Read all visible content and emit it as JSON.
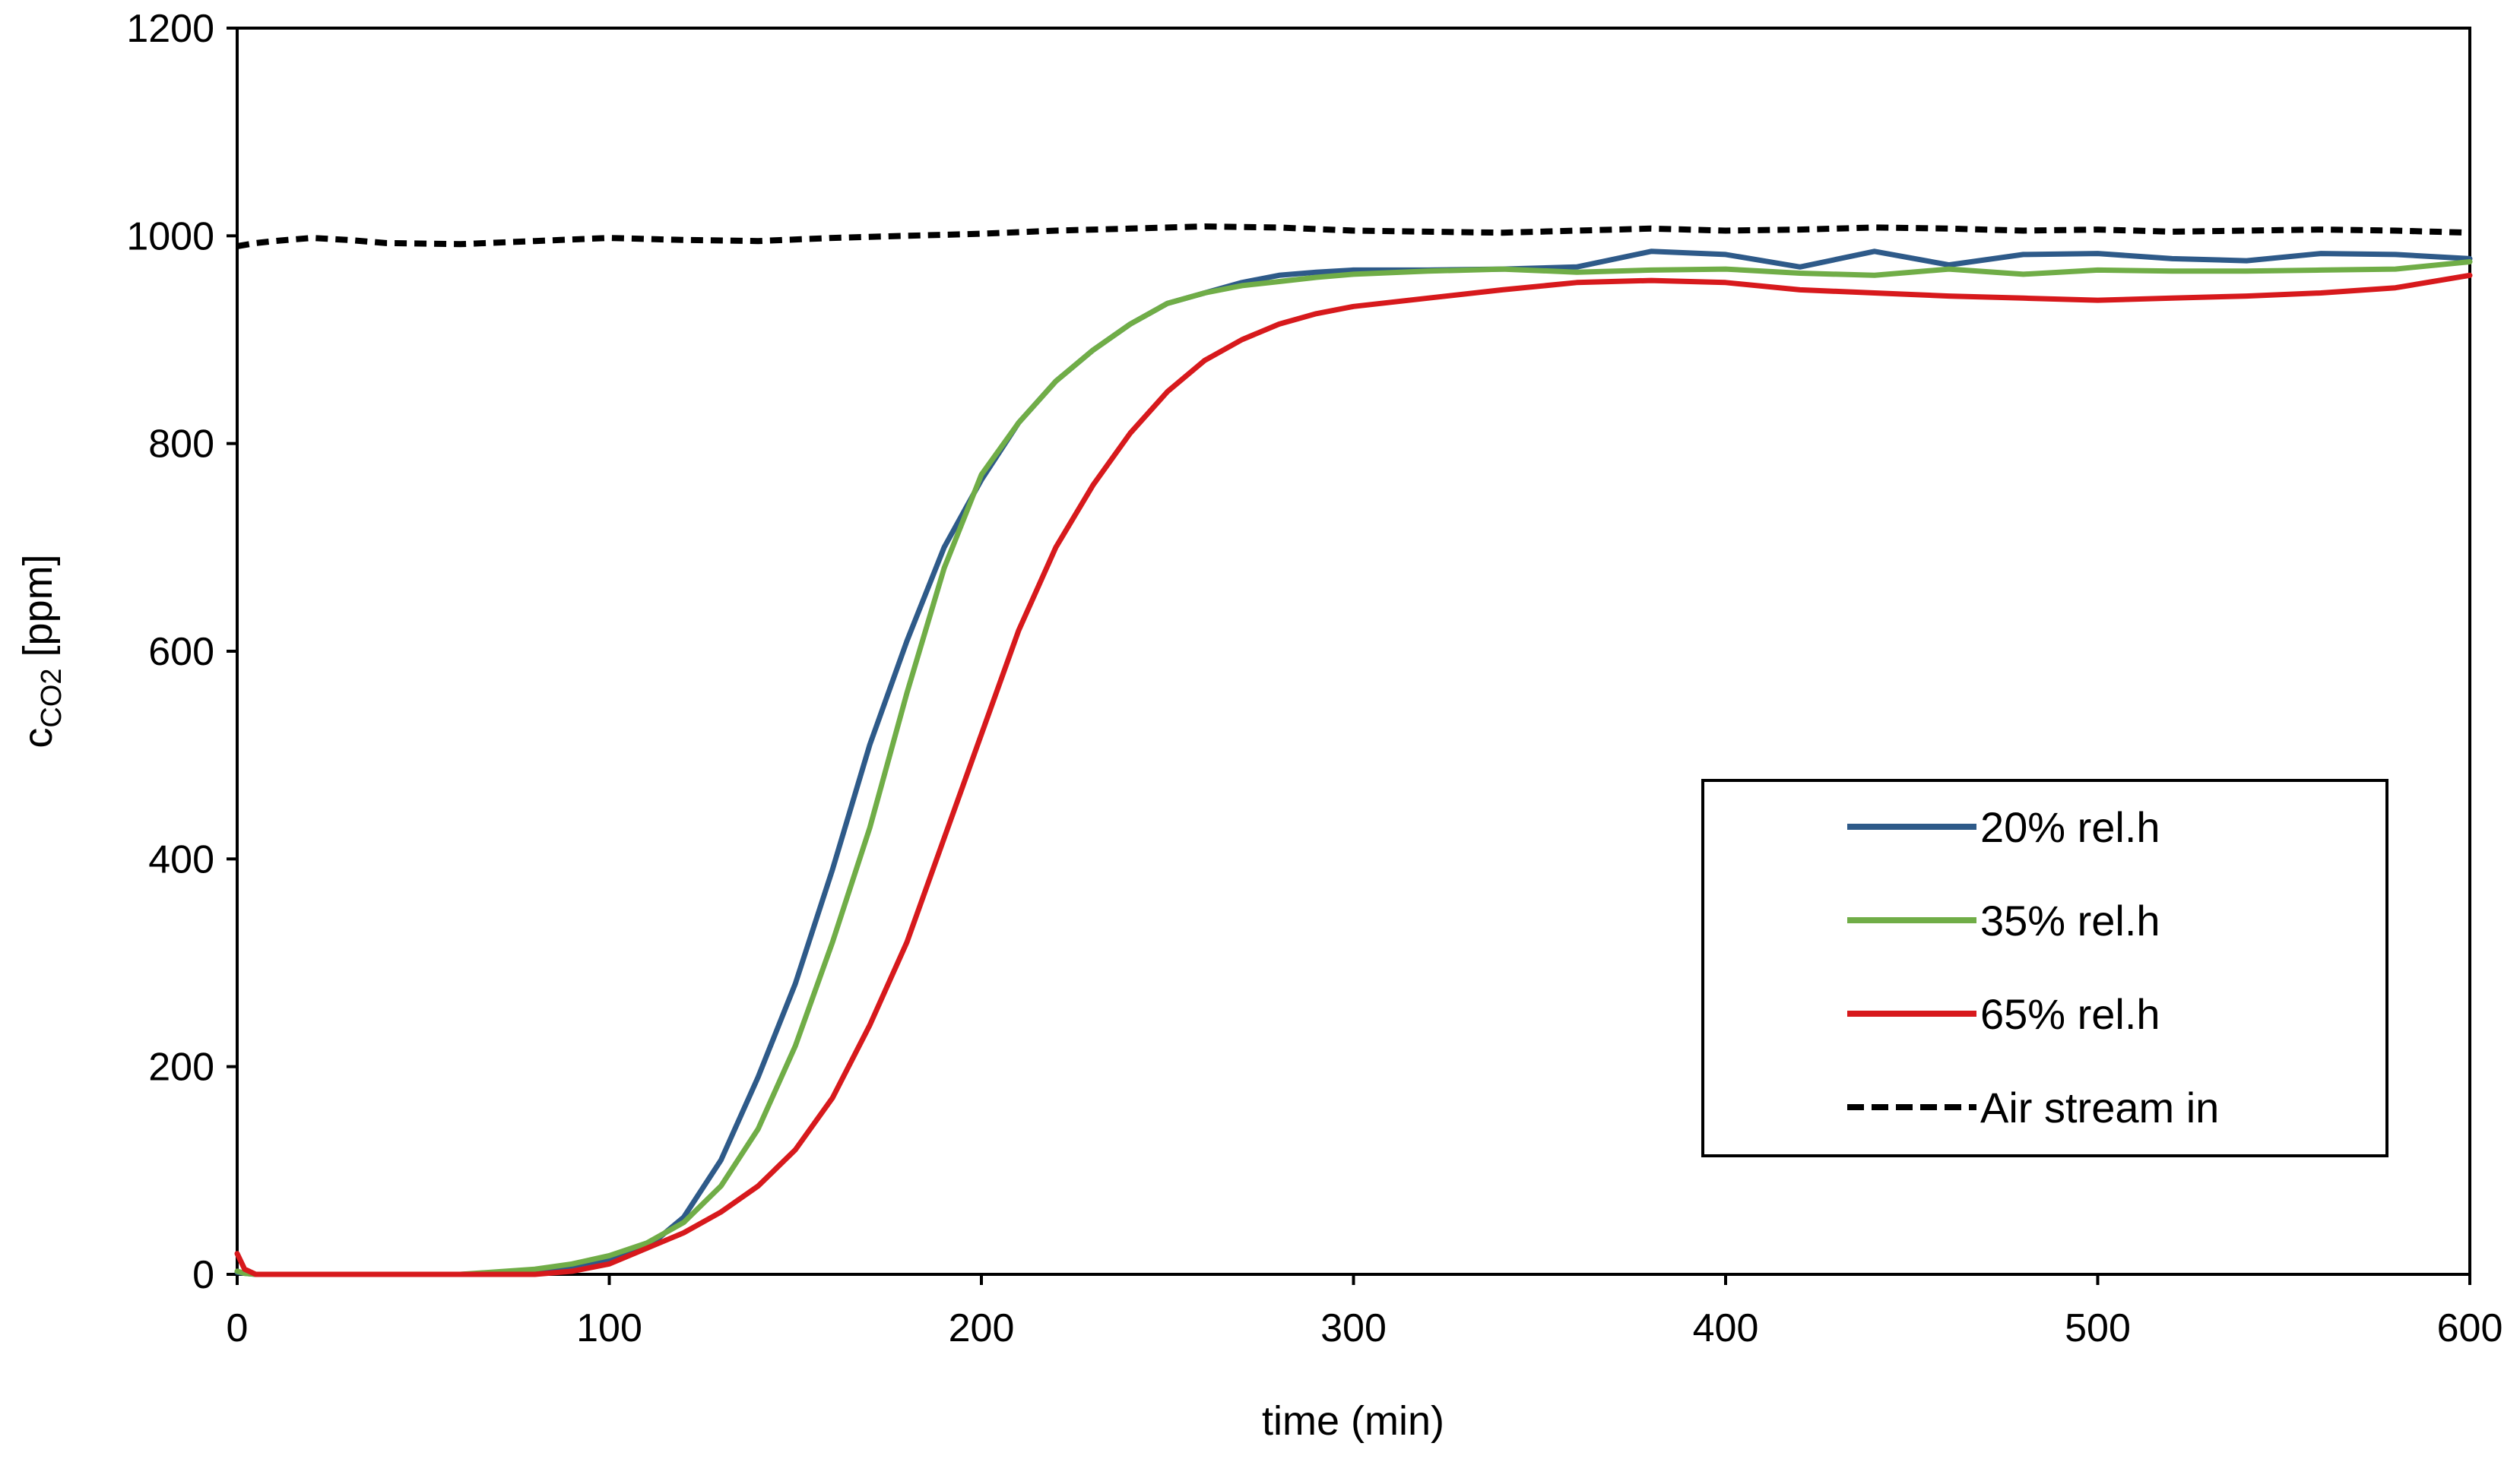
{
  "chart_data": {
    "type": "line",
    "title": "",
    "xlabel": "time (min)",
    "ylabel": {
      "base": "c",
      "subscript": "CO2",
      "unit": " [ppm]"
    },
    "xlim": [
      0,
      600
    ],
    "ylim": [
      0,
      1200
    ],
    "xticks": [
      0,
      100,
      200,
      300,
      400,
      500,
      600
    ],
    "yticks": [
      0,
      200,
      400,
      600,
      800,
      1000,
      1200
    ],
    "grid": false,
    "legend_position": "right-center",
    "series": [
      {
        "name": "20% rel.h",
        "color": "#2e5a89",
        "dash": "solid",
        "x": [
          0,
          2,
          5,
          10,
          20,
          40,
          60,
          80,
          90,
          100,
          110,
          120,
          130,
          140,
          150,
          160,
          165,
          170,
          180,
          190,
          200,
          210,
          220,
          230,
          240,
          250,
          260,
          270,
          280,
          290,
          300,
          320,
          340,
          360,
          380,
          400,
          420,
          440,
          460,
          480,
          500,
          520,
          540,
          560,
          580,
          600
        ],
        "y": [
          2,
          1,
          0,
          0,
          0,
          0,
          0,
          2,
          8,
          15,
          25,
          55,
          110,
          190,
          280,
          390,
          450,
          510,
          610,
          700,
          765,
          820,
          860,
          890,
          915,
          935,
          945,
          955,
          962,
          965,
          967,
          967,
          968,
          970,
          985,
          982,
          970,
          985,
          972,
          982,
          983,
          978,
          976,
          983,
          982,
          978
        ]
      },
      {
        "name": "35% rel.h",
        "color": "#70ad47",
        "dash": "solid",
        "x": [
          0,
          2,
          5,
          10,
          20,
          40,
          60,
          80,
          90,
          100,
          110,
          120,
          130,
          140,
          150,
          160,
          170,
          180,
          190,
          200,
          210,
          220,
          230,
          240,
          250,
          260,
          270,
          280,
          290,
          300,
          320,
          340,
          360,
          380,
          400,
          420,
          440,
          460,
          480,
          500,
          520,
          540,
          560,
          580,
          600
        ],
        "y": [
          3,
          1,
          0,
          0,
          0,
          0,
          0,
          5,
          10,
          18,
          30,
          50,
          85,
          140,
          220,
          320,
          430,
          560,
          680,
          770,
          820,
          860,
          890,
          915,
          935,
          945,
          952,
          956,
          960,
          963,
          966,
          968,
          965,
          967,
          968,
          964,
          962,
          968,
          963,
          967,
          966,
          966,
          967,
          968,
          975
        ]
      },
      {
        "name": "65% rel.h",
        "color": "#d7191c",
        "dash": "solid",
        "x": [
          0,
          2,
          5,
          10,
          20,
          40,
          60,
          80,
          90,
          100,
          110,
          120,
          130,
          140,
          150,
          160,
          170,
          180,
          190,
          200,
          210,
          220,
          230,
          240,
          250,
          260,
          270,
          280,
          290,
          300,
          320,
          340,
          360,
          380,
          400,
          420,
          440,
          460,
          480,
          500,
          520,
          540,
          560,
          580,
          600
        ],
        "y": [
          20,
          5,
          0,
          0,
          0,
          0,
          0,
          0,
          3,
          10,
          25,
          40,
          60,
          85,
          120,
          170,
          240,
          320,
          420,
          520,
          620,
          700,
          760,
          810,
          850,
          880,
          900,
          915,
          925,
          932,
          940,
          948,
          955,
          957,
          955,
          948,
          945,
          942,
          940,
          938,
          940,
          942,
          945,
          950,
          962
        ]
      },
      {
        "name": "Air stream in",
        "color": "#000000",
        "dash": "dashed",
        "x": [
          0,
          5,
          10,
          20,
          30,
          40,
          60,
          80,
          100,
          120,
          140,
          160,
          180,
          200,
          220,
          240,
          260,
          280,
          300,
          320,
          340,
          360,
          380,
          400,
          420,
          440,
          460,
          480,
          500,
          520,
          540,
          560,
          580,
          600
        ],
        "y": [
          990,
          993,
          995,
          998,
          996,
          993,
          992,
          995,
          998,
          996,
          995,
          998,
          1000,
          1002,
          1005,
          1007,
          1009,
          1008,
          1005,
          1004,
          1003,
          1005,
          1007,
          1005,
          1006,
          1008,
          1007,
          1005,
          1006,
          1004,
          1005,
          1006,
          1005,
          1003
        ]
      }
    ]
  }
}
